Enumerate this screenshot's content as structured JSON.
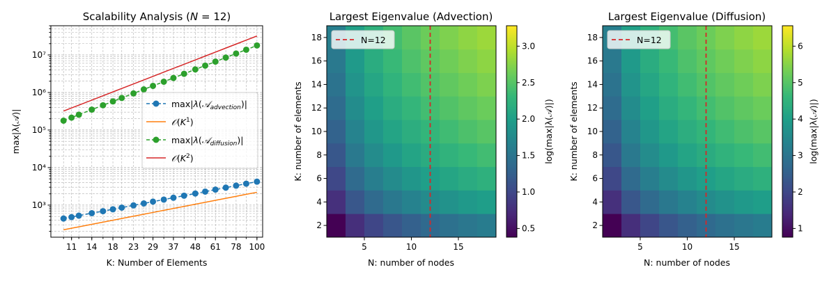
{
  "chart_data": [
    {
      "type": "line",
      "title": "Scalability Analysis (N = 12)",
      "title_text": "Scalability Analysis (",
      "title_var": "N",
      "title_eq": " = 12)",
      "xlabel": "K: Number of Elements",
      "ylabel": "max|λ(𝒜)|",
      "xscale": "log",
      "yscale": "log",
      "xlim": [
        8.6,
        107
      ],
      "ylim": [
        140,
        60000000
      ],
      "grid": true,
      "legend_position": "center-right",
      "xtick_labels": [
        11,
        14,
        18,
        23,
        29,
        37,
        48,
        61,
        78,
        100
      ],
      "ytick_labels": [
        "10³",
        "10⁴",
        "10⁵",
        "10⁶",
        "10⁷"
      ],
      "ytick_values": [
        1000,
        10000,
        100000,
        1000000,
        10000000
      ],
      "x": [
        10,
        11,
        12,
        14,
        16,
        18,
        20,
        23,
        26,
        29,
        33,
        37,
        42,
        48,
        54,
        61,
        69,
        78,
        88,
        100
      ],
      "series": [
        {
          "name": "max|λ(𝒜advection)|",
          "color": "#1f77b4",
          "style": "dashed-marker",
          "values": [
            440,
            480,
            525,
            610,
            690,
            775,
            860,
            985,
            1110,
            1240,
            1405,
            1575,
            1785,
            2040,
            2290,
            2590,
            2920,
            3300,
            3720,
            4220
          ]
        },
        {
          "name": "𝒪(K¹)",
          "color": "#ff7f0e",
          "style": "solid",
          "values": [
            220,
            242,
            264,
            308,
            352,
            396,
            440,
            506,
            572,
            638,
            726,
            814,
            924,
            1056,
            1188,
            1342,
            1518,
            1716,
            1936,
            2200
          ]
        },
        {
          "name": "max|λ(𝒜diffusion)|",
          "color": "#2ca02c",
          "style": "dashed-marker",
          "values": [
            178000,
            214000,
            256000,
            350000,
            457000,
            579000,
            714000,
            945000,
            1210000,
            1500000,
            1940000,
            2440000,
            3150000,
            4110000,
            5200000,
            6650000,
            8500000,
            10900000,
            13800000,
            17900000
          ]
        },
        {
          "name": "𝒪(K²)",
          "color": "#d62728",
          "style": "solid",
          "values": [
            320000,
            387200,
            460800,
            627200,
            819200,
            1036800,
            1280000,
            1692800,
            2163200,
            2691200,
            3484800,
            4380800,
            5644800,
            7372800,
            9331200,
            11907200,
            15235200,
            19468800,
            24780800,
            32000000
          ]
        }
      ]
    },
    {
      "type": "heatmap",
      "title": "Largest Eigenvalue (Advection)",
      "xlabel": "N: number of nodes",
      "ylabel": "K: number of elements",
      "colorbar_label": "log(max|λ(𝒜)|)",
      "colormap": "viridis",
      "xlim": [
        1,
        19
      ],
      "ylim": [
        1,
        19
      ],
      "xtick_labels": [
        5,
        10,
        15
      ],
      "ytick_labels": [
        2,
        4,
        6,
        8,
        10,
        12,
        14,
        16,
        18
      ],
      "clim": [
        0.38,
        3.28
      ],
      "colorbar_ticks": [
        "0.5",
        "1.0",
        "1.5",
        "2.0",
        "2.5",
        "3.0"
      ],
      "colorbar_tick_values": [
        0.5,
        1.0,
        1.5,
        2.0,
        2.5,
        3.0
      ],
      "vline": {
        "x": 12,
        "label": "N=12",
        "color": "#d62728"
      },
      "legend_position": "top-left",
      "x_centers": [
        2,
        4,
        6,
        8,
        10,
        12,
        14,
        16,
        18
      ],
      "y_centers": [
        2,
        4,
        6,
        8,
        10,
        12,
        14,
        16,
        18
      ],
      "z_params": {
        "base": 0.38,
        "n_scale": 1.22,
        "k_scale": 1.25,
        "k_max": 18,
        "n_max": 18
      }
    },
    {
      "type": "heatmap",
      "title": "Largest Eigenvalue (Diffusion)",
      "xlabel": "N: number of nodes",
      "ylabel": "K: number of elements",
      "colorbar_label": "log(max|λ(𝒜)|)",
      "colormap": "viridis",
      "xlim": [
        1,
        19
      ],
      "ylim": [
        1,
        19
      ],
      "xtick_labels": [
        5,
        10,
        15
      ],
      "ytick_labels": [
        2,
        4,
        6,
        8,
        10,
        12,
        14,
        16,
        18
      ],
      "clim": [
        0.76,
        6.56
      ],
      "colorbar_ticks": [
        "1",
        "2",
        "3",
        "4",
        "5",
        "6"
      ],
      "colorbar_tick_values": [
        1,
        2,
        3,
        4,
        5,
        6
      ],
      "vline": {
        "x": 12,
        "label": "N=12",
        "color": "#d62728"
      },
      "legend_position": "top-left",
      "x_centers": [
        2,
        4,
        6,
        8,
        10,
        12,
        14,
        16,
        18
      ],
      "y_centers": [
        2,
        4,
        6,
        8,
        10,
        12,
        14,
        16,
        18
      ],
      "z_params": {
        "base": 0.76,
        "n_scale": 2.44,
        "k_scale": 2.5,
        "k_max": 18,
        "n_max": 18
      }
    }
  ]
}
